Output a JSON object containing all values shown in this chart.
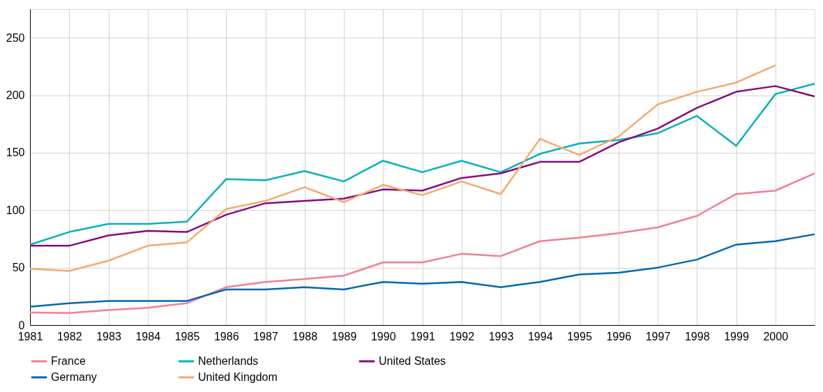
{
  "chart_data": {
    "type": "line",
    "x": [
      1981,
      1982,
      1983,
      1984,
      1985,
      1986,
      1987,
      1988,
      1989,
      1990,
      1991,
      1992,
      1993,
      1994,
      1995,
      1996,
      1997,
      1998,
      1999,
      2000,
      2001
    ],
    "xlim": [
      1981,
      2001
    ],
    "xticks": [
      1981,
      1982,
      1983,
      1984,
      1985,
      1986,
      1987,
      1988,
      1989,
      1990,
      1991,
      1992,
      1993,
      1994,
      1995,
      1996,
      1997,
      1998,
      1999,
      2000
    ],
    "ylim": [
      0,
      275
    ],
    "yticks": [
      0,
      50,
      100,
      150,
      200,
      250
    ],
    "grid": true,
    "legend": "bottom",
    "line_style": "solid",
    "marker": "none",
    "series": [
      {
        "name": "France",
        "color": "#ef7f93",
        "values": [
          11,
          10.5,
          13,
          15,
          19,
          33,
          37.5,
          40,
          43,
          54.5,
          54.5,
          62,
          60,
          73,
          76,
          80,
          85,
          95,
          114,
          117,
          132
        ]
      },
      {
        "name": "Netherlands",
        "color": "#00b2bd",
        "values": [
          70,
          81,
          88,
          88,
          90,
          127,
          126,
          134,
          125,
          143,
          133,
          143,
          133,
          149,
          158,
          161,
          167,
          182,
          156,
          201,
          210
        ]
      },
      {
        "name": "United States",
        "color": "#850a7c",
        "values": [
          69,
          69,
          78,
          82,
          81,
          96,
          106,
          108,
          110,
          118,
          117,
          128,
          132,
          142,
          142,
          159,
          171,
          189,
          203,
          208,
          199
        ]
      },
      {
        "name": "Germany",
        "color": "#0067b1",
        "values": [
          16,
          19,
          21,
          21,
          21,
          31,
          31,
          33,
          31,
          37.5,
          36,
          37.5,
          33,
          37.5,
          44,
          45.5,
          50,
          57,
          70,
          73,
          79
        ]
      },
      {
        "name": "United Kingdom",
        "color": "#f5a96a",
        "values": [
          49,
          47,
          56,
          69,
          72,
          101,
          108,
          120,
          107,
          122,
          113,
          125,
          114,
          162,
          148,
          164,
          192,
          203,
          211,
          226,
          null
        ]
      }
    ]
  }
}
